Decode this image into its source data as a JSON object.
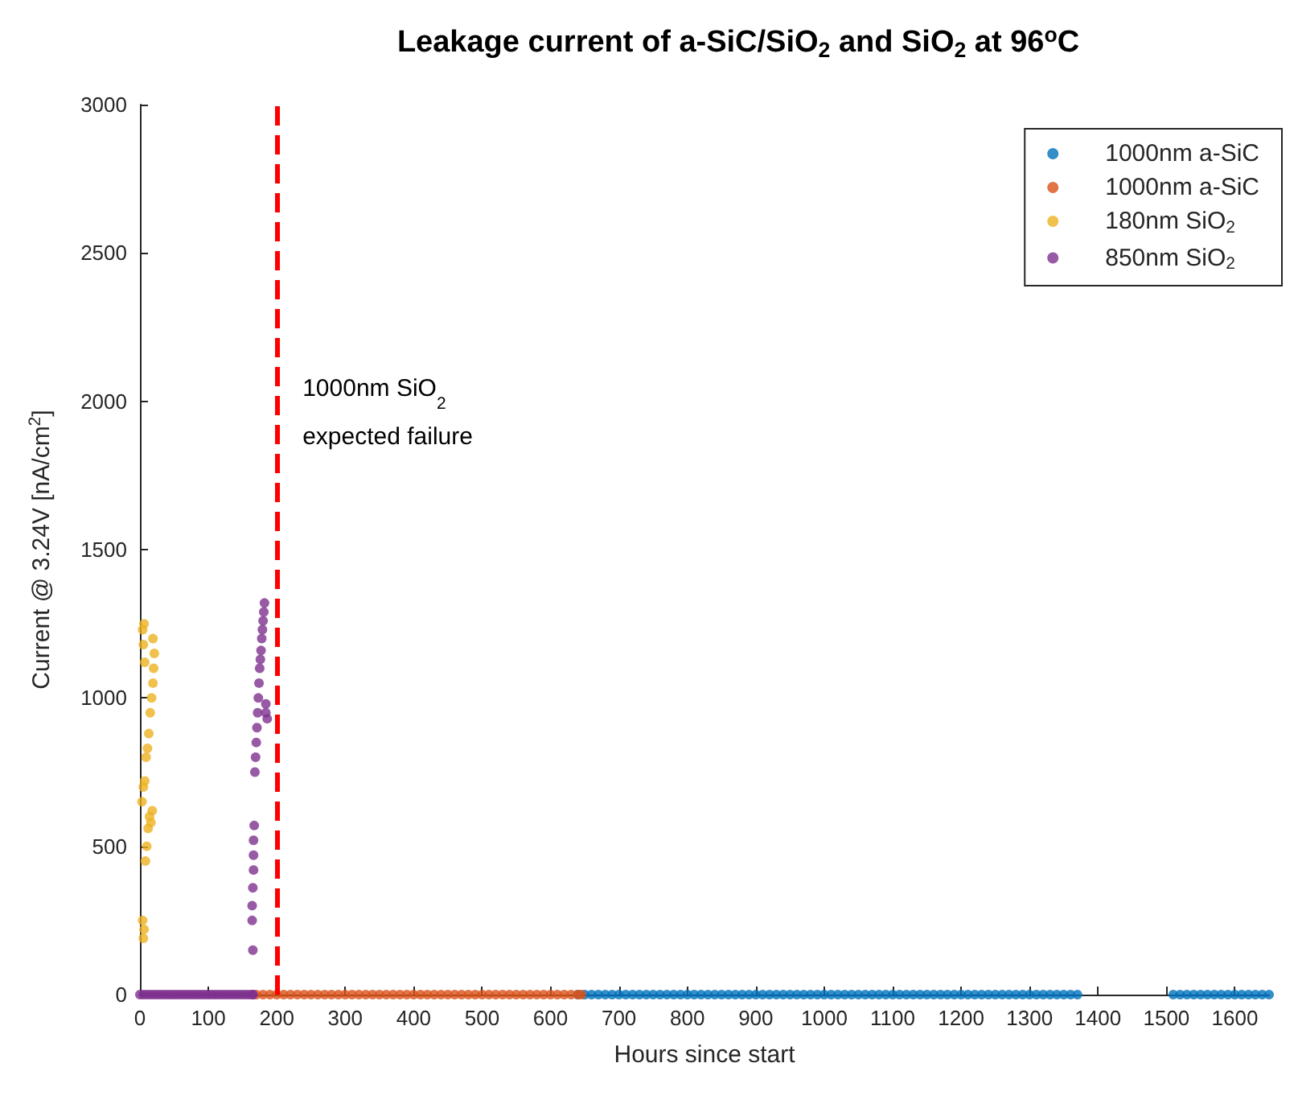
{
  "chart_data": {
    "type": "scatter",
    "title": "Leakage current of a-SiC/SiO$_{2}$ and SiO$_{2}$ at 96$^{o}$C",
    "xlabel": "Hours since start",
    "ylabel": "Current @ 3.24V [nA/cm$^{2}$]",
    "xlim": [
      0,
      1650
    ],
    "xticks": [
      0,
      100,
      200,
      300,
      400,
      500,
      600,
      700,
      800,
      900,
      1000,
      1100,
      1200,
      1300,
      1400,
      1500,
      1600
    ],
    "ylim": [
      0,
      3000
    ],
    "yticks": [
      0,
      500,
      1000,
      1500,
      2000,
      2500,
      3000
    ],
    "grid": false,
    "legend": "top right",
    "marker": "circle",
    "ref_lines": [
      {
        "axis": "x",
        "value": 200,
        "label": "1000nm SiO$_{2}$\nexpected failure",
        "color": "#ff0000",
        "line_style": "dashed"
      }
    ],
    "series": [
      {
        "name": "1000nm a-SiC",
        "color": "#0072bd",
        "x": [
          640,
          650,
          660,
          670,
          680,
          690,
          700,
          710,
          720,
          730,
          740,
          750,
          760,
          770,
          780,
          790,
          800,
          810,
          820,
          830,
          840,
          850,
          860,
          870,
          880,
          890,
          900,
          910,
          920,
          930,
          940,
          950,
          960,
          970,
          980,
          990,
          1000,
          1010,
          1020,
          1030,
          1040,
          1050,
          1060,
          1070,
          1080,
          1090,
          1100,
          1110,
          1120,
          1130,
          1140,
          1150,
          1160,
          1170,
          1180,
          1190,
          1200,
          1210,
          1220,
          1230,
          1240,
          1250,
          1260,
          1270,
          1280,
          1290,
          1300,
          1310,
          1320,
          1330,
          1340,
          1350,
          1360,
          1370,
          1510,
          1520,
          1530,
          1540,
          1550,
          1560,
          1570,
          1580,
          1590,
          1600,
          1610,
          1620,
          1630,
          1640,
          1650
        ],
        "values": [
          0,
          0,
          0,
          0,
          0,
          0,
          0,
          0,
          0,
          0,
          0,
          0,
          0,
          0,
          0,
          0,
          0,
          0,
          0,
          0,
          0,
          0,
          0,
          0,
          0,
          0,
          0,
          0,
          0,
          0,
          0,
          0,
          0,
          0,
          0,
          0,
          0,
          0,
          0,
          0,
          0,
          0,
          0,
          0,
          0,
          0,
          0,
          0,
          0,
          0,
          0,
          0,
          0,
          0,
          0,
          0,
          0,
          0,
          0,
          0,
          0,
          0,
          0,
          0,
          0,
          0,
          0,
          0,
          0,
          0,
          0,
          0,
          0,
          0,
          0,
          0,
          0,
          0,
          0,
          0,
          0,
          0,
          0,
          0,
          0,
          0,
          0,
          0,
          0
        ]
      },
      {
        "name": "1000nm a-SiC",
        "color": "#d95319",
        "x": [
          170,
          180,
          190,
          200,
          210,
          220,
          230,
          240,
          250,
          260,
          270,
          280,
          290,
          300,
          310,
          320,
          330,
          340,
          350,
          360,
          370,
          380,
          390,
          400,
          410,
          420,
          430,
          440,
          450,
          460,
          470,
          480,
          490,
          500,
          510,
          520,
          530,
          540,
          550,
          560,
          570,
          580,
          590,
          600,
          610,
          620,
          630,
          640,
          645
        ],
        "values": [
          0,
          0,
          0,
          0,
          0,
          0,
          0,
          0,
          0,
          0,
          0,
          0,
          0,
          0,
          0,
          0,
          0,
          0,
          0,
          0,
          0,
          0,
          0,
          0,
          0,
          0,
          0,
          0,
          0,
          0,
          0,
          0,
          0,
          0,
          0,
          0,
          0,
          0,
          0,
          0,
          0,
          0,
          0,
          0,
          0,
          0,
          0,
          0,
          0
        ]
      },
      {
        "name": "180nm SiO$_{2}$",
        "color": "#edb120",
        "x": [
          5,
          6,
          4,
          8,
          10,
          12,
          14,
          16,
          18,
          3,
          5,
          7,
          9,
          11,
          13,
          15,
          17,
          19,
          20,
          21,
          19,
          4,
          6,
          5,
          7
        ],
        "values": [
          190,
          220,
          250,
          450,
          500,
          560,
          600,
          580,
          620,
          650,
          700,
          720,
          800,
          830,
          880,
          950,
          1000,
          1050,
          1100,
          1150,
          1200,
          1230,
          1250,
          1180,
          1120
        ]
      },
      {
        "name": "850nm SiO$_{2}$",
        "color": "#7e2f8e",
        "x": [
          0,
          5,
          10,
          15,
          20,
          25,
          30,
          35,
          40,
          45,
          50,
          55,
          60,
          65,
          70,
          75,
          80,
          85,
          90,
          95,
          100,
          105,
          110,
          115,
          120,
          125,
          130,
          135,
          140,
          145,
          150,
          155,
          160,
          165,
          165,
          165,
          164,
          164,
          165,
          166,
          166,
          166,
          167,
          168,
          169,
          170,
          171,
          172,
          173,
          174,
          175,
          176,
          177,
          178,
          179,
          180,
          181,
          182,
          184,
          184,
          186
        ],
        "values": [
          0,
          0,
          0,
          0,
          0,
          0,
          0,
          0,
          0,
          0,
          0,
          0,
          0,
          0,
          0,
          0,
          0,
          0,
          0,
          0,
          0,
          0,
          0,
          0,
          0,
          0,
          0,
          0,
          0,
          0,
          0,
          0,
          0,
          0,
          0,
          150,
          250,
          300,
          360,
          420,
          470,
          520,
          570,
          750,
          800,
          850,
          900,
          950,
          1000,
          1050,
          1100,
          1130,
          1160,
          1200,
          1230,
          1260,
          1290,
          1320,
          950,
          980,
          930
        ]
      }
    ]
  }
}
